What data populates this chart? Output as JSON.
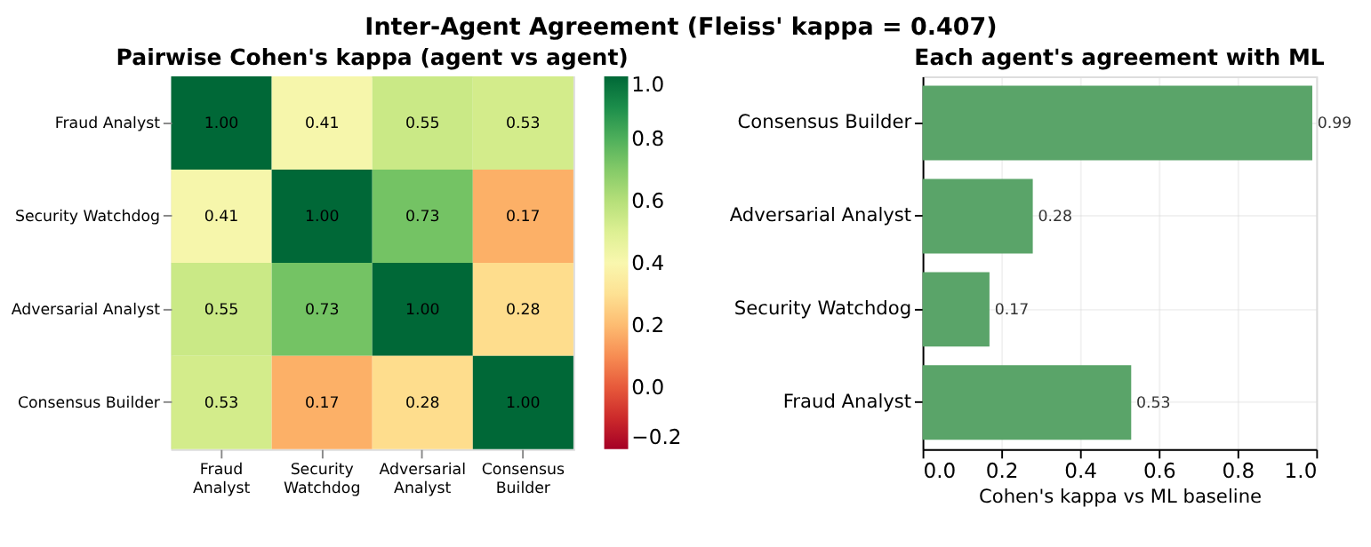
{
  "chart_data": [
    {
      "type": "heatmap",
      "title": "Pairwise Cohen's kappa (agent vs agent)",
      "annotations": [
        "Inter-Agent Agreement (Fleiss' kappa = 0.407)"
      ],
      "categories": [
        "Fraud Analyst",
        "Security Watchdog",
        "Adversarial Analyst",
        "Consensus Builder"
      ],
      "y_categories": [
        "Fraud Analyst",
        "Security Watchdog",
        "Adversarial Analyst",
        "Consensus Builder"
      ],
      "cells": [
        [
          1.0,
          0.41,
          0.55,
          0.53
        ],
        [
          0.41,
          1.0,
          0.73,
          0.17
        ],
        [
          0.55,
          0.73,
          1.0,
          0.28
        ],
        [
          0.53,
          0.17,
          0.28,
          1.0
        ]
      ],
      "cell_labels": [
        [
          "1.00",
          "0.41",
          "0.55",
          "0.53"
        ],
        [
          "0.41",
          "1.00",
          "0.73",
          "0.17"
        ],
        [
          "0.55",
          "0.73",
          "1.00",
          "0.28"
        ],
        [
          "0.53",
          "0.17",
          "0.28",
          "1.00"
        ]
      ],
      "clim": [
        -0.2,
        1.0
      ],
      "cticks": [
        -0.2,
        {
          "value": 0,
          "label": "0.0"
        },
        0.2,
        0.4,
        0.6,
        0.8,
        {
          "value": 1,
          "label": "1.0"
        }
      ]
    },
    {
      "type": "bar",
      "orientation": "horizontal",
      "title": "Each agent's agreement with ML",
      "xlabel": "Cohen's kappa vs ML baseline",
      "categories": [
        "Consensus Builder",
        "Adversarial Analyst",
        "Security Watchdog",
        "Fraud Analyst"
      ],
      "values": [
        0.99,
        0.28,
        0.17,
        0.53
      ],
      "color": "#5aa469",
      "xlim": [
        0,
        1.0
      ],
      "xticks": [
        {
          "value": 0,
          "label": "0.0"
        },
        0.2,
        0.4,
        0.6,
        0.8,
        {
          "value": 1,
          "label": "1.0"
        }
      ],
      "grid": true,
      "data_labels": true
    }
  ]
}
